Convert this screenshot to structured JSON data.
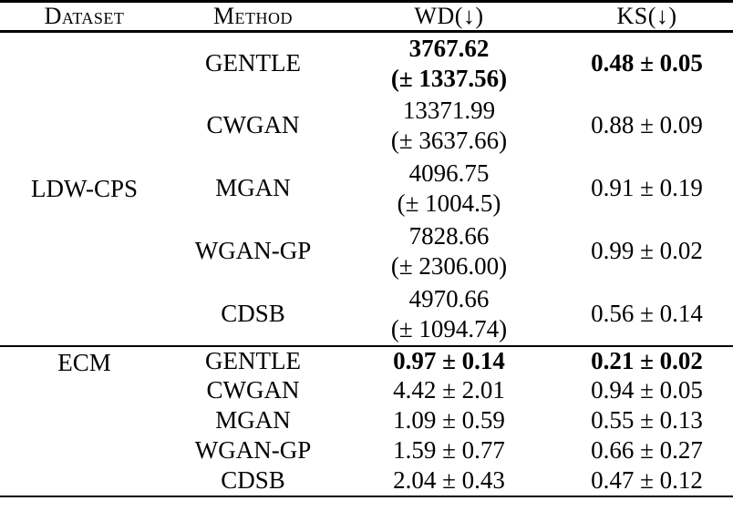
{
  "table": {
    "headers": [
      "Dataset",
      "Method",
      "WD(↓)",
      "KS(↓)"
    ],
    "sections": [
      {
        "dataset": "LDW-CPS",
        "rows": [
          {
            "method": "GENTLE",
            "wd_main": "3767.62",
            "wd_std": "(± 1337.56)",
            "ks": "0.48 ± 0.05"
          },
          {
            "method": "CWGAN",
            "wd_main": "13371.99",
            "wd_std": "(± 3637.66)",
            "ks": "0.88 ± 0.09"
          },
          {
            "method": "MGAN",
            "wd_main": "4096.75",
            "wd_std": "(± 1004.5)",
            "ks": "0.91 ± 0.19"
          },
          {
            "method": "WGAN-GP",
            "wd_main": "7828.66",
            "wd_std": "(± 2306.00)",
            "ks": "0.99 ± 0.02"
          },
          {
            "method": "CDSB",
            "wd_main": "4970.66",
            "wd_std": "(± 1094.74)",
            "ks": "0.56 ± 0.14"
          }
        ]
      },
      {
        "dataset": "ECM",
        "rows": [
          {
            "method": "GENTLE",
            "wd": "0.97 ± 0.14",
            "ks": "0.21 ± 0.02"
          },
          {
            "method": "CWGAN",
            "wd": "4.42 ± 2.01",
            "ks": "0.94 ± 0.05"
          },
          {
            "method": "MGAN",
            "wd": "1.09 ± 0.59",
            "ks": "0.55 ± 0.13"
          },
          {
            "method": "WGAN-GP",
            "wd": "1.59 ± 0.77",
            "ks": "0.66 ± 0.27"
          },
          {
            "method": "CDSB",
            "wd": "2.04 ± 0.43",
            "ks": "0.47 ± 0.12"
          }
        ]
      }
    ]
  }
}
